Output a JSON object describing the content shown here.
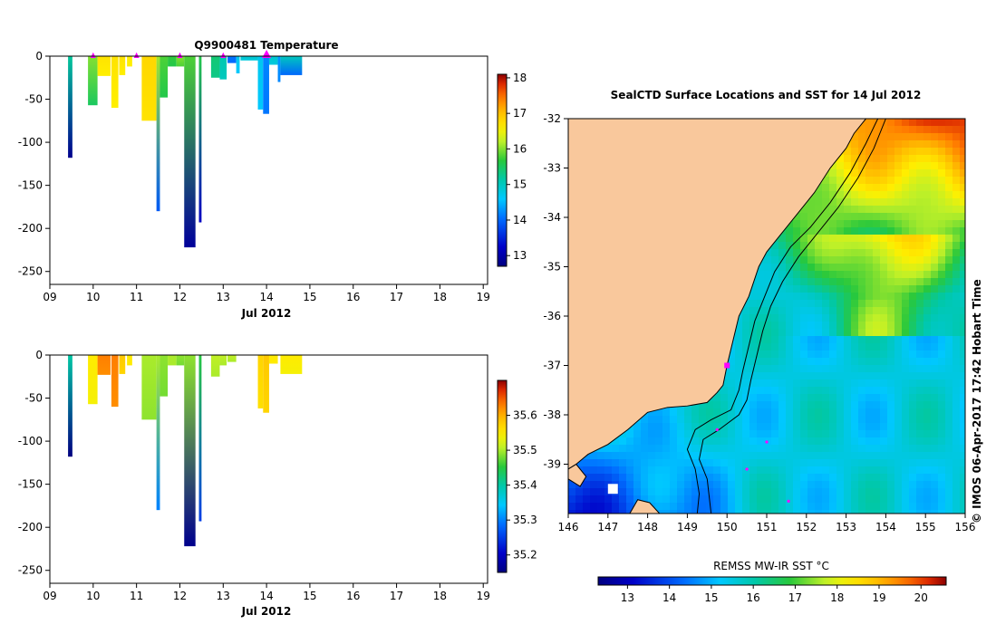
{
  "colors": {
    "land": "#f9c89c",
    "marker": "#ff00ff",
    "axis": "#000000"
  },
  "chart_data": [
    {
      "id": "temperature-section",
      "type": "heatmap",
      "title": "Q9900481  Temperature",
      "xlabel": "Jul 2012",
      "ylabel": "",
      "x_tick_labels": [
        "09",
        "10",
        "11",
        "12",
        "13",
        "14",
        "15",
        "16",
        "17",
        "18",
        "19"
      ],
      "xlim": [
        9,
        19.1
      ],
      "y_ticks": [
        0,
        -50,
        -100,
        -150,
        -200,
        -250
      ],
      "ylim": [
        -265,
        0
      ],
      "colorbar": {
        "ticks": [
          13,
          14,
          15,
          16,
          17,
          18
        ],
        "range": [
          12.7,
          18.1
        ]
      },
      "surface_markers_day": [
        10.0,
        11.0,
        12.0,
        13.0,
        14.0
      ],
      "highlight_marker_day": 14.0,
      "profiles": [
        {
          "x": 9.42,
          "w": 0.1,
          "z": -118,
          "top": 15.2,
          "bot": 12.8
        },
        {
          "x": 9.88,
          "w": 0.22,
          "z": -57,
          "top": 16.0,
          "bot": 15.5
        },
        {
          "x": 10.1,
          "w": 0.3,
          "z": -23,
          "top": 16.7,
          "bot": 16.6
        },
        {
          "x": 10.42,
          "w": 0.16,
          "z": -60,
          "top": 16.7,
          "bot": 16.6
        },
        {
          "x": 10.6,
          "w": 0.14,
          "z": -22,
          "top": 16.7,
          "bot": 16.6
        },
        {
          "x": 10.78,
          "w": 0.12,
          "z": -12,
          "top": 16.6,
          "bot": 16.6
        },
        {
          "x": 11.12,
          "w": 0.34,
          "z": -75,
          "top": 16.8,
          "bot": 16.7
        },
        {
          "x": 11.46,
          "w": 0.08,
          "z": -180,
          "top": 16.1,
          "bot": 13.9
        },
        {
          "x": 11.54,
          "w": 0.18,
          "z": -48,
          "top": 15.8,
          "bot": 15.6
        },
        {
          "x": 11.72,
          "w": 0.2,
          "z": -12,
          "top": 15.7,
          "bot": 15.6
        },
        {
          "x": 11.92,
          "w": 0.18,
          "z": -12,
          "top": 16.0,
          "bot": 15.8
        },
        {
          "x": 12.1,
          "w": 0.26,
          "z": -222,
          "top": 15.8,
          "bot": 12.9
        },
        {
          "x": 12.44,
          "w": 0.06,
          "z": -193,
          "top": 15.6,
          "bot": 13.2
        },
        {
          "x": 12.72,
          "w": 0.2,
          "z": -25,
          "top": 15.4,
          "bot": 15.3
        },
        {
          "x": 12.92,
          "w": 0.16,
          "z": -27,
          "top": 15.1,
          "bot": 15.0
        },
        {
          "x": 13.1,
          "w": 0.2,
          "z": -8,
          "top": 14.1,
          "bot": 14.0
        },
        {
          "x": 13.3,
          "w": 0.08,
          "z": -20,
          "top": 14.7,
          "bot": 14.6
        },
        {
          "x": 13.4,
          "w": 0.4,
          "z": -5,
          "top": 14.9,
          "bot": 14.8
        },
        {
          "x": 13.8,
          "w": 0.12,
          "z": -62,
          "top": 14.7,
          "bot": 14.6
        },
        {
          "x": 13.92,
          "w": 0.14,
          "z": -67,
          "top": 14.2,
          "bot": 14.1
        },
        {
          "x": 14.06,
          "w": 0.2,
          "z": -10,
          "top": 14.9,
          "bot": 14.8
        },
        {
          "x": 14.26,
          "w": 0.06,
          "z": -30,
          "top": 14.3,
          "bot": 14.2
        },
        {
          "x": 14.32,
          "w": 0.5,
          "z": -22,
          "top": 15.0,
          "bot": 14.0
        }
      ]
    },
    {
      "id": "salinity-section",
      "type": "heatmap",
      "title": "",
      "xlabel": "Jul 2012",
      "ylabel": "",
      "x_tick_labels": [
        "09",
        "10",
        "11",
        "12",
        "13",
        "14",
        "15",
        "16",
        "17",
        "18",
        "19"
      ],
      "xlim": [
        9,
        19.1
      ],
      "y_ticks": [
        0,
        -50,
        -100,
        -150,
        -200,
        -250
      ],
      "ylim": [
        -265,
        0
      ],
      "colorbar": {
        "ticks": [
          35.2,
          35.3,
          35.4,
          35.5,
          35.6
        ],
        "range": [
          35.15,
          35.7
        ]
      },
      "profiles": [
        {
          "x": 9.42,
          "w": 0.1,
          "z": -118,
          "top": 35.4,
          "bot": 35.15
        },
        {
          "x": 9.88,
          "w": 0.22,
          "z": -57,
          "top": 35.55,
          "bot": 35.54
        },
        {
          "x": 10.1,
          "w": 0.3,
          "z": -23,
          "top": 35.63,
          "bot": 35.62
        },
        {
          "x": 10.42,
          "w": 0.16,
          "z": -60,
          "top": 35.63,
          "bot": 35.62
        },
        {
          "x": 10.6,
          "w": 0.14,
          "z": -22,
          "top": 35.58,
          "bot": 35.57
        },
        {
          "x": 10.78,
          "w": 0.12,
          "z": -12,
          "top": 35.55,
          "bot": 35.55
        },
        {
          "x": 11.12,
          "w": 0.34,
          "z": -75,
          "top": 35.5,
          "bot": 35.49
        },
        {
          "x": 11.46,
          "w": 0.08,
          "z": -180,
          "top": 35.5,
          "bot": 35.3
        },
        {
          "x": 11.54,
          "w": 0.18,
          "z": -48,
          "top": 35.49,
          "bot": 35.48
        },
        {
          "x": 11.72,
          "w": 0.2,
          "z": -12,
          "top": 35.5,
          "bot": 35.5
        },
        {
          "x": 11.92,
          "w": 0.18,
          "z": -12,
          "top": 35.49,
          "bot": 35.48
        },
        {
          "x": 12.1,
          "w": 0.26,
          "z": -222,
          "top": 35.49,
          "bot": 35.16
        },
        {
          "x": 12.44,
          "w": 0.06,
          "z": -193,
          "top": 35.45,
          "bot": 35.25
        },
        {
          "x": 12.72,
          "w": 0.2,
          "z": -25,
          "top": 35.51,
          "bot": 35.5
        },
        {
          "x": 12.92,
          "w": 0.16,
          "z": -12,
          "top": 35.51,
          "bot": 35.5
        },
        {
          "x": 13.1,
          "w": 0.2,
          "z": -8,
          "top": 35.51,
          "bot": 35.5
        },
        {
          "x": 13.8,
          "w": 0.12,
          "z": -62,
          "top": 35.57,
          "bot": 35.56
        },
        {
          "x": 13.92,
          "w": 0.14,
          "z": -67,
          "top": 35.58,
          "bot": 35.57
        },
        {
          "x": 14.06,
          "w": 0.2,
          "z": -10,
          "top": 35.55,
          "bot": 35.55
        },
        {
          "x": 14.32,
          "w": 0.5,
          "z": -22,
          "top": 35.55,
          "bot": 35.54
        }
      ]
    },
    {
      "id": "sst-map",
      "type": "heatmap",
      "title": "SealCTD Surface Locations and SST for 14 Jul 2012",
      "xlabel": "",
      "ylabel": "",
      "x_tick_labels": [
        "146",
        "147",
        "148",
        "149",
        "150",
        "151",
        "152",
        "153",
        "154",
        "155",
        "156"
      ],
      "y_tick_labels": [
        "-32",
        "-33",
        "-34",
        "-35",
        "-36",
        "-37",
        "-38",
        "-39"
      ],
      "xlim": [
        146,
        156
      ],
      "ylim": [
        -40,
        -32
      ],
      "colorbar_label": "REMSS MW-IR SST °C",
      "colorbar": {
        "ticks": [
          13,
          14,
          15,
          16,
          17,
          18,
          19,
          20
        ],
        "range": [
          12.3,
          20.6
        ]
      },
      "coastline": [
        [
          153.5,
          -32.0
        ],
        [
          153.2,
          -32.3
        ],
        [
          153.0,
          -32.6
        ],
        [
          152.6,
          -33.0
        ],
        [
          152.2,
          -33.5
        ],
        [
          151.8,
          -33.9
        ],
        [
          151.4,
          -34.3
        ],
        [
          151.0,
          -34.7
        ],
        [
          150.8,
          -35.0
        ],
        [
          150.55,
          -35.6
        ],
        [
          150.3,
          -36.0
        ],
        [
          150.15,
          -36.5
        ],
        [
          150.0,
          -37.0
        ],
        [
          149.9,
          -37.4
        ],
        [
          149.75,
          -37.55
        ],
        [
          149.5,
          -37.75
        ],
        [
          149.0,
          -37.82
        ],
        [
          148.5,
          -37.85
        ],
        [
          148.0,
          -37.95
        ],
        [
          147.5,
          -38.3
        ],
        [
          147.0,
          -38.6
        ],
        [
          146.5,
          -38.8
        ],
        [
          146.2,
          -39.0
        ],
        [
          146.0,
          -39.1
        ]
      ],
      "land_extra": [
        [
          [
            146.0,
            -39.1
          ],
          [
            146.2,
            -39.0
          ],
          [
            146.45,
            -39.25
          ],
          [
            146.3,
            -39.45
          ],
          [
            146.0,
            -39.3
          ]
        ],
        [
          [
            147.55,
            -40.0
          ],
          [
            147.75,
            -39.72
          ],
          [
            148.05,
            -39.78
          ],
          [
            148.3,
            -40.0
          ]
        ]
      ],
      "island_blocks": [
        [
          147.0,
          -39.4,
          0.25,
          0.2
        ]
      ],
      "isobaths": [
        [
          [
            153.8,
            -32.0
          ],
          [
            153.5,
            -32.5
          ],
          [
            153.1,
            -33.1
          ],
          [
            152.6,
            -33.7
          ],
          [
            152.1,
            -34.2
          ],
          [
            151.6,
            -34.6
          ],
          [
            151.2,
            -35.1
          ],
          [
            150.95,
            -35.6
          ],
          [
            150.7,
            -36.1
          ],
          [
            150.55,
            -36.6
          ],
          [
            150.4,
            -37.1
          ],
          [
            150.3,
            -37.5
          ],
          [
            150.1,
            -37.9
          ],
          [
            149.6,
            -38.1
          ],
          [
            149.2,
            -38.3
          ],
          [
            149.0,
            -38.7
          ],
          [
            149.2,
            -39.1
          ],
          [
            149.3,
            -39.6
          ],
          [
            149.25,
            -40.0
          ]
        ],
        [
          [
            154.0,
            -32.0
          ],
          [
            153.7,
            -32.6
          ],
          [
            153.3,
            -33.2
          ],
          [
            152.8,
            -33.8
          ],
          [
            152.3,
            -34.3
          ],
          [
            151.8,
            -34.8
          ],
          [
            151.4,
            -35.3
          ],
          [
            151.1,
            -35.8
          ],
          [
            150.9,
            -36.3
          ],
          [
            150.75,
            -36.8
          ],
          [
            150.6,
            -37.3
          ],
          [
            150.5,
            -37.7
          ],
          [
            150.3,
            -38.0
          ],
          [
            149.8,
            -38.3
          ],
          [
            149.4,
            -38.5
          ],
          [
            149.3,
            -38.9
          ],
          [
            149.5,
            -39.3
          ],
          [
            149.6,
            -40.0
          ]
        ]
      ],
      "sst_field": {
        "gradient": "east-west",
        "west_coast_c": 15.2,
        "northeast_c": 20.3,
        "southwest_c": 13.0,
        "offshore_south_c": 15.5
      },
      "ctd_locations": [
        {
          "lon": 150.0,
          "lat": -37.0,
          "big": true
        },
        {
          "lon": 149.75,
          "lat": -38.3,
          "big": false
        },
        {
          "lon": 150.5,
          "lat": -39.1,
          "big": false
        },
        {
          "lon": 151.55,
          "lat": -39.75,
          "big": false
        },
        {
          "lon": 151.0,
          "lat": -38.55,
          "big": false
        }
      ],
      "credit": "©  IMOS 06-Apr-2017 17:42 Hobart Time"
    }
  ]
}
